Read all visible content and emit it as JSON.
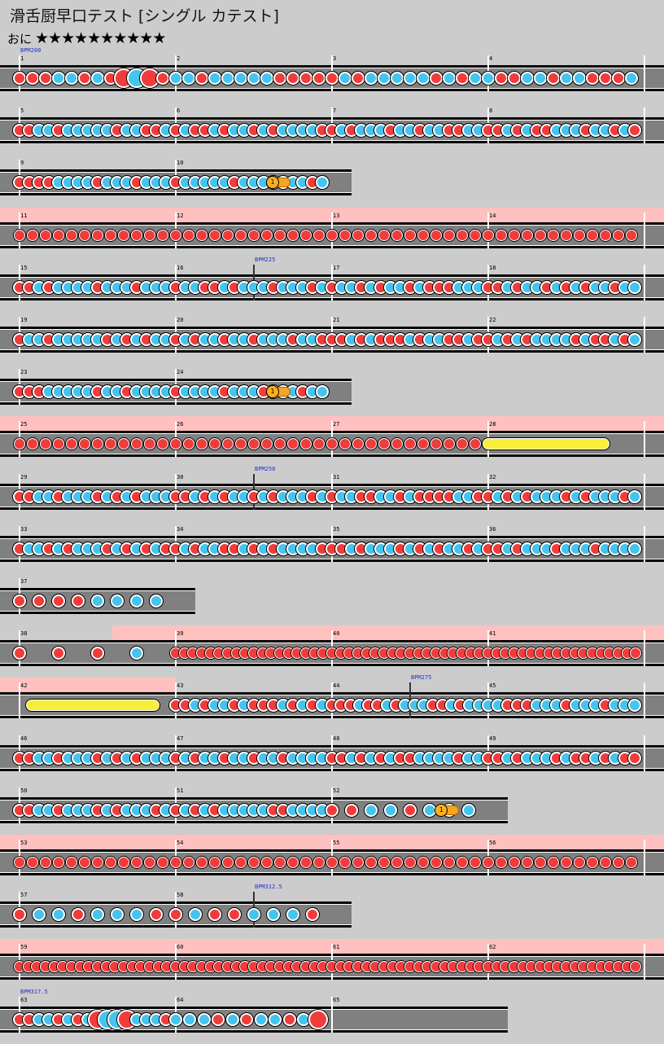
{
  "page": {
    "title": "滑舌厨早口テスト [シングル カテスト]",
    "difficulty_label": "おに",
    "stars": "★★★★★★★★★★"
  },
  "colors": {
    "background": "#cccccc",
    "lane": "#808080",
    "gogo": "#ffc0c0",
    "don": "#f23b3b",
    "ka": "#44c4ee",
    "roll": "#f9ee3a",
    "bpm": "#2233cc"
  },
  "rows": [
    {
      "measures": [
        "1",
        "2",
        "3",
        "4"
      ],
      "bpm": [
        {
          "label": "BPM200",
          "m": 0,
          "f": 0
        }
      ],
      "notes": [
        [
          "dddkkdkdDKDd",
          "kkdkkkkkdddd",
          "dkdkkkkkdkdk",
          "kddkkdkkdddk"
        ]
      ]
    },
    {
      "measures": [
        "5",
        "6",
        "7",
        "8"
      ],
      "notes": [
        [
          "ddkkdkkkkkdkkddk",
          "dkddkdkkdkdkkkkd",
          "dkdkkkdkkdkkddkk",
          "ddkdkddkkkdkkdkd"
        ]
      ]
    },
    {
      "measures": [
        "9",
        "10"
      ],
      "end": 2,
      "notes": [
        [
          "ddddkkkkdkkkdkkk",
          "dkkkkkdkkkdkkkdk"
        ]
      ],
      "drum": {
        "m": 1,
        "f": 0.62
      }
    },
    {
      "measures": [
        "11",
        "12",
        "13",
        "14"
      ],
      "gogo": [
        0,
        4
      ],
      "notes": [
        [
          "dddddddddddd",
          "dddddddddddd",
          "dddddddddddd",
          "dddddddddddd"
        ]
      ],
      "dense": true
    },
    {
      "measures": [
        "15",
        "16",
        "17",
        "18"
      ],
      "bpm": [
        {
          "label": "BPM225",
          "m": 1,
          "f": 0.5
        }
      ],
      "notes": [
        [
          "ddkdkkkkdkkkdkkk",
          "dkkddkdkkkdkkkdk",
          "dkkdkdkkdkdddkkk",
          "ddkdkkdkdkdkkdkk"
        ]
      ]
    },
    {
      "measures": [
        "19",
        "20",
        "21",
        "22"
      ],
      "notes": [
        [
          "dkkdkkkkkdkdkdkk",
          "dkdkkdkkdkkkdkkd",
          "ddkdkdddkdkkddkd",
          "dkdkdkkkkdkddkdk"
        ]
      ]
    },
    {
      "measures": [
        "23",
        "24"
      ],
      "end": 2,
      "notes": [
        [
          "dddkkkkkdkkdkkkk",
          "dkkkkdkkkdkkkdkk"
        ]
      ],
      "drum": {
        "m": 1,
        "f": 0.62
      }
    },
    {
      "measures": [
        "25",
        "26",
        "27",
        "28"
      ],
      "gogo": [
        0,
        4
      ],
      "notes": [
        [
          "dddddddddddd",
          "dddddddddddd",
          "dddddddddddd",
          "ddd"
        ]
      ],
      "dense": true,
      "roll": {
        "m": 3,
        "f0": 0.0,
        "f1": 0.78
      }
    },
    {
      "measures": [
        "29",
        "30",
        "31",
        "32"
      ],
      "bpm": [
        {
          "label": "BPM250",
          "m": 1,
          "f": 0.5
        }
      ],
      "notes": [
        [
          "ddkkdkkkdkdkdkkk",
          "ddkdkdkkdkdkkkdk",
          "dkkddkkdkddddkkd",
          "dkdkdkkkdkdkkkdk"
        ]
      ]
    },
    {
      "measures": [
        "33",
        "34",
        "35",
        "36"
      ],
      "notes": [
        [
          "dkkdkdkkkdkdkdkd",
          "dkdkkddkdkdkkkkd",
          "ddkdkkkdkdkdkkdk",
          "ddkdkkkdkkkdkkkk"
        ]
      ]
    },
    {
      "measures": [
        "37"
      ],
      "end": 1,
      "notes": [
        [
          "ddddkkkk"
        ]
      ]
    },
    {
      "measures": [
        "38",
        "39",
        "40",
        "41"
      ],
      "gogo": [
        0.75,
        4
      ],
      "notes": [
        [
          "d d d k ",
          "dddddddddddddddddd",
          "dddddddddddddddddd",
          "dddddddddddddddddd"
        ]
      ],
      "dense38": true
    },
    {
      "measures": [
        "42",
        "43",
        "44",
        "45"
      ],
      "gogo": [
        0,
        1
      ],
      "bpm": [
        {
          "label": "BPM275",
          "m": 2,
          "f": 0.5
        }
      ],
      "notes": [
        [
          "",
          "ddkdkkdkdddkdkdk",
          "dddkddkdkkkddkdkk",
          "kkdddkkkdkkkdkkk"
        ]
      ],
      "roll": {
        "m": 0,
        "f0": 0.08,
        "f1": 0.9
      }
    },
    {
      "measures": [
        "46",
        "47",
        "48",
        "49"
      ],
      "notes": [
        [
          "ddkkdkkkdkdkdkkk",
          "dkdkkdkkdkkdkkkk",
          "ddkdkdkddkkkkdkk",
          "ddkdkkkdkddkdkdd"
        ]
      ]
    },
    {
      "measures": [
        "50",
        "51",
        "52"
      ],
      "end": 3,
      "notes": [
        [
          "ddkkdkkkdkdkkkdk",
          "dkdkdkkkkkddkkkk",
          "ddkkdkkk"
        ]
      ],
      "drum": {
        "m": 2,
        "f": 0.7
      }
    },
    {
      "measures": [
        "53",
        "54",
        "55",
        "56"
      ],
      "gogo": [
        0,
        4
      ],
      "notes": [
        [
          "dddddddddddd",
          "dddddddddddd",
          "dddddddddddd",
          "dddddddddddd"
        ]
      ],
      "dense": true
    },
    {
      "measures": [
        "57",
        "58"
      ],
      "end": 2,
      "bpm": [
        {
          "label": "BPM312.5",
          "m": 1,
          "f": 0.5
        }
      ],
      "notes": [
        [
          "dkkdkkkd",
          "dkddkkkd"
        ]
      ]
    },
    {
      "measures": [
        "59",
        "60",
        "61",
        "62"
      ],
      "gogo": [
        0,
        4
      ],
      "notes": [
        [
          "dddddddddddddddddd",
          "dddddddddddddddddd",
          "dddddddddddddddddd",
          "dddddddddddddddddd"
        ]
      ],
      "dense": true
    },
    {
      "measures": [
        "63",
        "64",
        "65"
      ],
      "end": 3,
      "bpm": [
        {
          "label": "BPM317.5",
          "m": 0,
          "f": 0
        }
      ],
      "notes": [
        [
          "ddkkdkdkDKKDkkkd",
          "kkkdkdkkdkD"
        ]
      ]
    }
  ]
}
